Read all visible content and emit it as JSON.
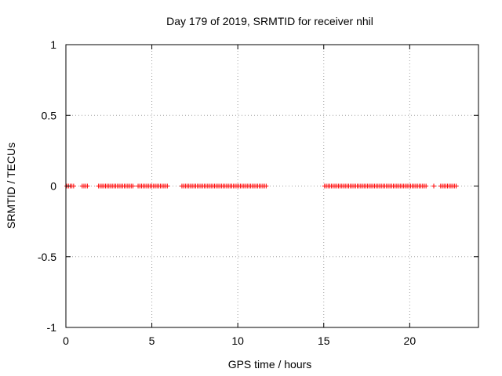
{
  "chart_data": {
    "type": "scatter",
    "title": "Day 179 of 2019, SRMTID for receiver nhil",
    "xlabel": "GPS time / hours",
    "ylabel": "SRMTID / TECUs",
    "xlim": [
      0,
      24
    ],
    "ylim": [
      -1,
      1
    ],
    "xticks": [
      0,
      5,
      10,
      15,
      20
    ],
    "xtick_labels": [
      "0",
      "5",
      "10",
      "15",
      "20"
    ],
    "yticks": [
      -1,
      -0.5,
      0,
      0.5,
      1
    ],
    "ytick_labels": [
      "-1",
      "-0.5",
      "0",
      "0.5",
      "1"
    ],
    "grid": true,
    "marker": "+",
    "marker_color": "#ff0000",
    "series": [
      {
        "name": "SRMTID",
        "coverage_ranges_hours": [
          [
            0.05,
            0.5
          ],
          [
            0.95,
            1.25
          ],
          [
            1.9,
            3.9
          ],
          [
            4.2,
            5.9
          ],
          [
            6.75,
            11.65
          ],
          [
            15.05,
            21.0
          ],
          [
            21.4,
            21.45
          ],
          [
            21.8,
            22.7
          ]
        ],
        "sample_interval_hours": 0.1,
        "y_value": 0
      }
    ]
  }
}
